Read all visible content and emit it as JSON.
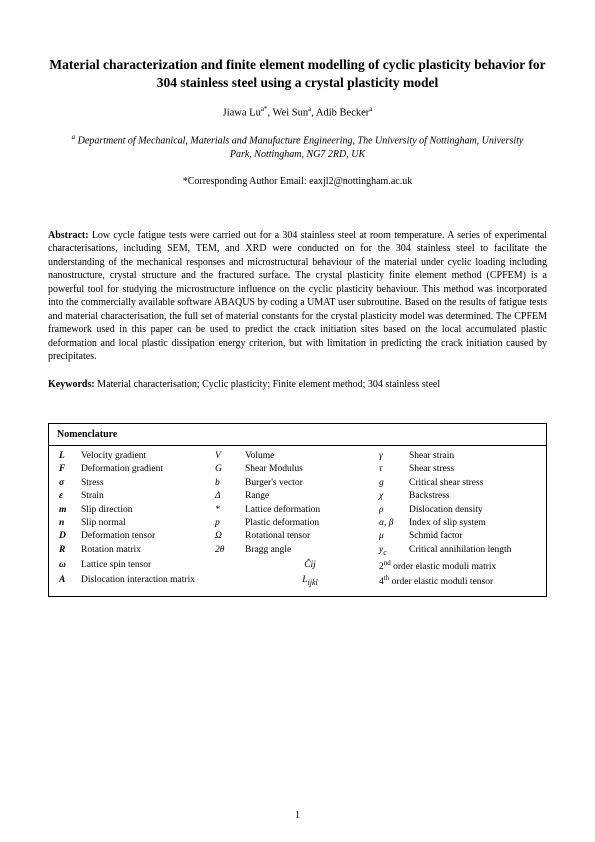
{
  "title": "Material characterization and finite element modelling of cyclic plasticity behavior for 304 stainless steel using a crystal plasticity model",
  "authors_html": "Jiawa Lu<sup>a*</sup>, Wei Sun<sup>a</sup>, Adib Becker<sup>a</sup>",
  "affiliation_html": "<sup>a</sup> Department of Mechanical, Materials and Manufacture Engineering, The University of Nottingham, University Park, Nottingham, NG7 2RD, UK",
  "corresp": "*Corresponding Author Email: eaxjl2@nottingham.ac.uk",
  "abstract_label": "Abstract:",
  "abstract_text": "Low cycle fatigue tests were carried out for a 304 stainless steel at room temperature. A series of experimental characterisations, including SEM, TEM, and XRD were conducted on for the 304 stainless steel to facilitate the understanding of the mechanical responses and microstructural behaviour of the material under cyclic loading including nanostructure, crystal structure and the fractured surface. The crystal plasticity finite element method (CPFEM) is a powerful tool for studying the microstructure influence on the cyclic plasticity behaviour. This method was incorporated into the commercially available software ABAQUS by coding a UMAT user subroutine. Based on the results of fatigue tests and material characterisation, the full set of material constants for the crystal plasticity model was determined. The CPFEM framework used in this paper can be used to predict the crack initiation sites based on the local accumulated plastic deformation and local plastic dissipation energy criterion, but with limitation in predicting the crack initiation caused by precipitates.",
  "keywords_label": "Keywords:",
  "keywords_text": "Material characterisation; Cyclic plasticity; Finite element method; 304 stainless steel",
  "nomen_title": "Nomenclature",
  "nomen": [
    {
      "s1": "L",
      "d1": "Velocity gradient",
      "s2": "V",
      "d2": "Volume",
      "s3": "γ",
      "d3": "Shear strain"
    },
    {
      "s1": "F",
      "d1": "Deformation gradient",
      "s2": "G",
      "d2": "Shear Modulus",
      "s3": "τ",
      "d3": "Shear stress"
    },
    {
      "s1": "σ",
      "d1": "Stress",
      "s2": "b",
      "d2": "Burger's vector",
      "s3": "g",
      "d3": "Critical shear stress"
    },
    {
      "s1": "ε",
      "d1": "Strain",
      "s2": "Δ",
      "d2": "Range",
      "s3": "χ",
      "d3": "Backstress"
    },
    {
      "s1": "m",
      "d1": "Slip direction",
      "s2": "*",
      "d2": "Lattice deformation",
      "s3": "ρ",
      "d3": "Dislocation density"
    },
    {
      "s1": "n",
      "d1": "Slip normal",
      "s2": "p",
      "d2": "Plastic deformation",
      "s3": "α, β",
      "d3": "Index of slip system"
    },
    {
      "s1": "D",
      "d1": "Deformation tensor",
      "s2": "Ω",
      "d2": "Rotational tensor",
      "s3": "μ",
      "d3": "Schmid factor"
    },
    {
      "s1": "R",
      "d1": "Rotation matrix",
      "s2": "2θ",
      "d2": "Bragg angle",
      "s3": "y<sub>c</sub>",
      "d3": "Critical annihilation length"
    }
  ],
  "nomen_tail": [
    {
      "s1": "ω",
      "d1": "Lattice spin tensor",
      "s2": "Ĉij",
      "d2": "2<sup>nd</sup> order elastic moduli matrix"
    },
    {
      "s1": "A",
      "d1": "Dislocation interaction matrix",
      "s2": "L<sub>ijkl</sub>",
      "d2": "4<sup>th</sup> order elastic moduli tensor"
    }
  ],
  "pagenum": "1"
}
